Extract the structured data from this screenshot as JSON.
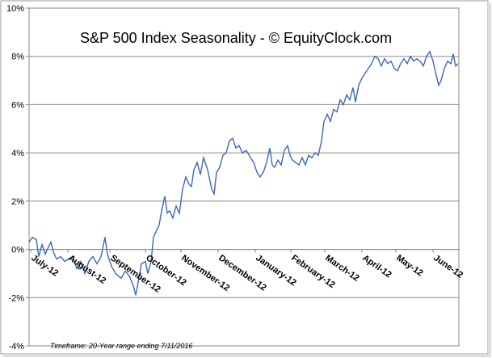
{
  "chart_data": {
    "type": "line",
    "title": "S&P 500 Index Seasonality - © EquityClock.com",
    "annotation": "Timeframe: 20-Year range ending 7/11/2016",
    "x": [
      0,
      2,
      4.5,
      6,
      8,
      10,
      12,
      13.5,
      15,
      17,
      19.5,
      22,
      24.5,
      27,
      29.5,
      32,
      34.5,
      37,
      39.5,
      42,
      44.5,
      47,
      48.5,
      51,
      53.5,
      57,
      59.5,
      62,
      64.5,
      66,
      68,
      69.5,
      72,
      73.5,
      75.5,
      77,
      79,
      80.5,
      82,
      84,
      85.5,
      87,
      89,
      91,
      93,
      95,
      97,
      99,
      100.5,
      102,
      104,
      106,
      108,
      110.5,
      113,
      114.5,
      116,
      118,
      120,
      122,
      124,
      126,
      128,
      130,
      132,
      134.5,
      137,
      139,
      141,
      143,
      145,
      147,
      149,
      150.5,
      152,
      154,
      156,
      158,
      160,
      161.5,
      163,
      165,
      167,
      169,
      171,
      173,
      175,
      177,
      179,
      181,
      182.5,
      184.5,
      186.5,
      188.5,
      190.5,
      192.5,
      194.5,
      196.5,
      198.5,
      200.5,
      202,
      204,
      206,
      208,
      210,
      212,
      214,
      216,
      218,
      220,
      222,
      224,
      226,
      228,
      230,
      232,
      234,
      236,
      238,
      240,
      242,
      244,
      246,
      248,
      250,
      252,
      253.5,
      255,
      257,
      259,
      261,
      262.5,
      264,
      265.5
    ],
    "series": [
      {
        "name": "S&P 500",
        "color": "#3f68b5",
        "values": [
          0.3,
          0.5,
          0.4,
          -0.3,
          0.2,
          -0.2,
          0.1,
          0.3,
          -0.1,
          -0.4,
          -0.3,
          -0.5,
          -0.4,
          -0.3,
          -0.8,
          -0.5,
          -1.0,
          -0.5,
          -0.3,
          -0.6,
          -0.3,
          0.5,
          -0.2,
          -0.7,
          -1.0,
          -1.2,
          -0.9,
          -1.1,
          -1.5,
          -1.9,
          -1.2,
          -0.6,
          -0.5,
          -1.0,
          -0.5,
          0.5,
          0.8,
          1.0,
          1.6,
          2.2,
          1.5,
          1.6,
          1.3,
          1.8,
          1.5,
          2.5,
          3.0,
          2.7,
          2.6,
          3.3,
          3.6,
          3.1,
          3.8,
          3.3,
          2.5,
          2.3,
          3.2,
          3.4,
          3.9,
          4.0,
          4.5,
          4.6,
          4.2,
          4.3,
          4.0,
          4.1,
          3.8,
          3.6,
          3.2,
          3.0,
          3.2,
          3.6,
          4.2,
          3.5,
          3.4,
          3.7,
          3.5,
          4.1,
          4.3,
          3.9,
          3.7,
          3.6,
          3.5,
          3.8,
          3.5,
          3.9,
          3.8,
          4.0,
          3.9,
          4.5,
          5.3,
          5.6,
          5.3,
          5.8,
          5.7,
          6.2,
          6.0,
          6.4,
          6.2,
          6.7,
          6.1,
          6.8,
          7.1,
          7.3,
          7.5,
          7.7,
          8.0,
          7.9,
          7.6,
          7.9,
          7.7,
          7.8,
          7.5,
          7.4,
          7.7,
          7.9,
          7.7,
          8.0,
          7.8,
          7.9,
          7.8,
          7.6,
          8.0,
          8.2,
          7.8,
          7.2,
          6.8,
          7.0,
          7.5,
          7.8,
          7.7,
          8.1,
          7.6,
          7.7
        ]
      }
    ],
    "xlim": [
      0,
      266
    ],
    "xticks": [
      {
        "value": 1,
        "label": "July-12"
      },
      {
        "value": 24,
        "label": "August-12"
      },
      {
        "value": 50,
        "label": "September-12"
      },
      {
        "value": 72,
        "label": "October-12"
      },
      {
        "value": 94,
        "label": "November-12"
      },
      {
        "value": 117,
        "label": "December-12"
      },
      {
        "value": 140,
        "label": "January-12"
      },
      {
        "value": 162,
        "label": "February-12"
      },
      {
        "value": 183,
        "label": "March-12"
      },
      {
        "value": 206,
        "label": "April-12"
      },
      {
        "value": 227,
        "label": "May-12"
      },
      {
        "value": 250,
        "label": "June-12"
      }
    ],
    "ylim": [
      -4,
      10
    ],
    "yticks": [
      {
        "value": -4,
        "label": "-4%"
      },
      {
        "value": -2,
        "label": "-2%"
      },
      {
        "value": 0,
        "label": "0%"
      },
      {
        "value": 2,
        "label": "2%"
      },
      {
        "value": 4,
        "label": "4%"
      },
      {
        "value": 6,
        "label": "6%"
      },
      {
        "value": 8,
        "label": "8%"
      },
      {
        "value": 10,
        "label": "10%"
      }
    ],
    "grid": true
  }
}
